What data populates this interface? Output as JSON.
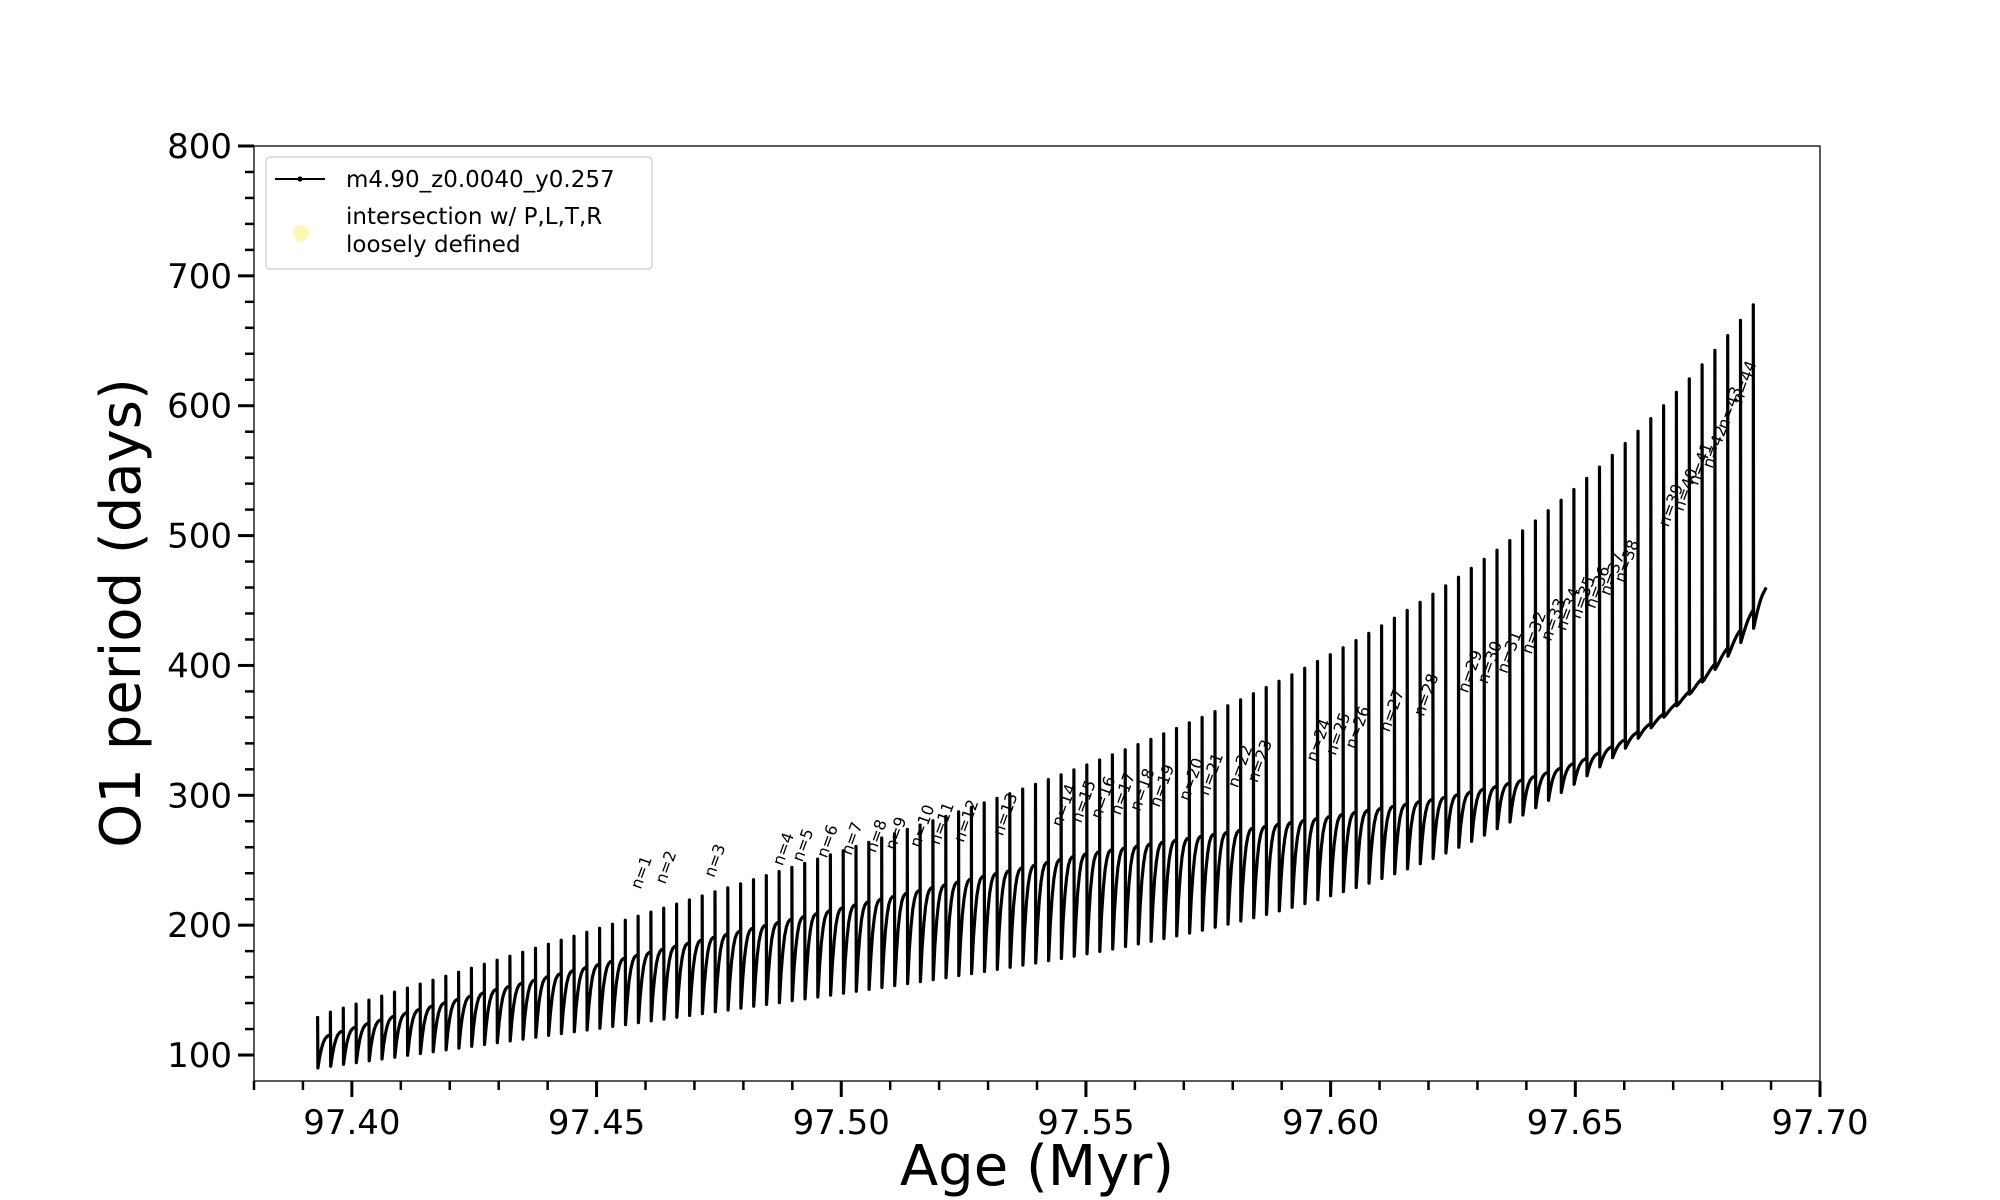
{
  "chart_data": {
    "type": "line",
    "title": "",
    "xlabel": "Age (Myr)",
    "ylabel": "O1 period (days)",
    "xlim": [
      97.38,
      97.7
    ],
    "ylim": [
      80,
      800
    ],
    "x_ticks": [
      "97.40",
      "97.45",
      "97.50",
      "97.55",
      "97.60",
      "97.65",
      "97.70"
    ],
    "y_ticks": [
      "100",
      "200",
      "300",
      "400",
      "500",
      "600",
      "700",
      "800"
    ],
    "grid": false,
    "legend_position": "upper left",
    "legend": [
      {
        "label": "m4.90_z0.0040_y0.257",
        "style": "line",
        "color": "#000000"
      },
      {
        "label": "intersection w/ P,L,T,R\nloosely defined",
        "style": "marker",
        "color": "#fff7b0"
      }
    ],
    "series": [
      {
        "name": "m4.90_z0.0040_y0.257",
        "color": "#000000",
        "x_start": 97.393,
        "x_end": 97.689,
        "cycles": 113,
        "base_start": 112,
        "base_mid_age": 97.55,
        "base_mid": 255,
        "base_end": 460,
        "spike_start": 130,
        "spike_end": 690,
        "dip_start": 90,
        "dip_end": 440
      }
    ],
    "annotations": [
      {
        "text": "n=1",
        "x": 97.459,
        "y": 224
      },
      {
        "text": "n=2",
        "x": 97.464,
        "y": 228
      },
      {
        "text": "n=3",
        "x": 97.474,
        "y": 233
      },
      {
        "text": "n=4",
        "x": 97.488,
        "y": 242
      },
      {
        "text": "n=5",
        "x": 97.492,
        "y": 245
      },
      {
        "text": "n=6",
        "x": 97.497,
        "y": 248
      },
      {
        "text": "n=7",
        "x": 97.502,
        "y": 250
      },
      {
        "text": "n=8",
        "x": 97.507,
        "y": 252
      },
      {
        "text": "n=9",
        "x": 97.511,
        "y": 254
      },
      {
        "text": "n=10",
        "x": 97.516,
        "y": 256
      },
      {
        "text": "n=11",
        "x": 97.52,
        "y": 258
      },
      {
        "text": "n=12",
        "x": 97.525,
        "y": 260
      },
      {
        "text": "n=13",
        "x": 97.533,
        "y": 265
      },
      {
        "text": "n=14",
        "x": 97.545,
        "y": 272
      },
      {
        "text": "n=15",
        "x": 97.549,
        "y": 275
      },
      {
        "text": "n=16",
        "x": 97.553,
        "y": 278
      },
      {
        "text": "n=17",
        "x": 97.557,
        "y": 281
      },
      {
        "text": "n=18",
        "x": 97.561,
        "y": 284
      },
      {
        "text": "n=19",
        "x": 97.565,
        "y": 287
      },
      {
        "text": "n=20",
        "x": 97.571,
        "y": 292
      },
      {
        "text": "n=21",
        "x": 97.575,
        "y": 296
      },
      {
        "text": "n=22",
        "x": 97.581,
        "y": 302
      },
      {
        "text": "n=23",
        "x": 97.585,
        "y": 306
      },
      {
        "text": "n=24",
        "x": 97.597,
        "y": 322
      },
      {
        "text": "n=25",
        "x": 97.601,
        "y": 327
      },
      {
        "text": "n=26",
        "x": 97.605,
        "y": 332
      },
      {
        "text": "n=27",
        "x": 97.612,
        "y": 345
      },
      {
        "text": "n=28",
        "x": 97.619,
        "y": 357
      },
      {
        "text": "n=29",
        "x": 97.628,
        "y": 375
      },
      {
        "text": "n=30",
        "x": 97.632,
        "y": 382
      },
      {
        "text": "n=31",
        "x": 97.636,
        "y": 390
      },
      {
        "text": "n=32",
        "x": 97.641,
        "y": 405
      },
      {
        "text": "n=33",
        "x": 97.645,
        "y": 415
      },
      {
        "text": "n=34",
        "x": 97.648,
        "y": 423
      },
      {
        "text": "n=35",
        "x": 97.651,
        "y": 432
      },
      {
        "text": "n=36",
        "x": 97.654,
        "y": 440
      },
      {
        "text": "n=37",
        "x": 97.657,
        "y": 450
      },
      {
        "text": "n=38",
        "x": 97.66,
        "y": 460
      },
      {
        "text": "n=39",
        "x": 97.669,
        "y": 503
      },
      {
        "text": "n=40",
        "x": 97.672,
        "y": 515
      },
      {
        "text": "n=41",
        "x": 97.675,
        "y": 535
      },
      {
        "text": "n=42",
        "x": 97.678,
        "y": 548
      },
      {
        "text": "n=43",
        "x": 97.681,
        "y": 578
      },
      {
        "text": "n=44",
        "x": 97.684,
        "y": 598
      }
    ]
  }
}
